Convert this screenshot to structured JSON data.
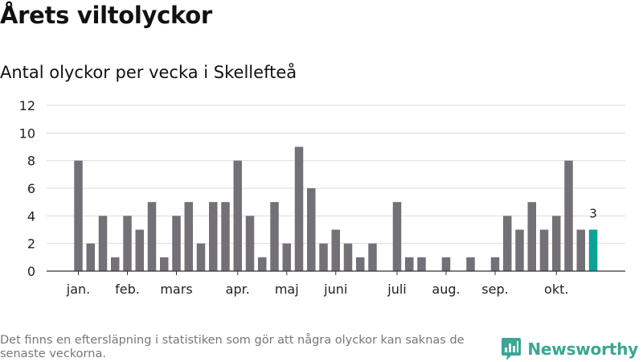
{
  "header": {
    "title": "Årets viltolyckor",
    "subtitle": "Antal olyckor per vecka i Skellefteå"
  },
  "footer": {
    "note": "Det finns en eftersläpning i statistiken som gör att några olyckor kan saknas de senaste veckorna.",
    "brand": "Newsworthy",
    "brand_icon": "newsworthy-logo-icon"
  },
  "colors": {
    "bar": "#737177",
    "highlight": "#0aa197",
    "grid": "#dddddd",
    "axis": "#333333",
    "brand": "#3aa693"
  },
  "chart_data": {
    "type": "bar",
    "title": "Antal olyckor per vecka i Skellefteå",
    "ylim": [
      0,
      12
    ],
    "y_ticks": [
      0,
      2,
      4,
      6,
      8,
      10,
      12
    ],
    "grid": "horizontal",
    "x_tick_labels": [
      {
        "label": "jan.",
        "week": 1
      },
      {
        "label": "feb.",
        "week": 5
      },
      {
        "label": "mars",
        "week": 9
      },
      {
        "label": "apr.",
        "week": 14
      },
      {
        "label": "maj",
        "week": 18
      },
      {
        "label": "juni",
        "week": 22
      },
      {
        "label": "juli",
        "week": 27
      },
      {
        "label": "aug.",
        "week": 31
      },
      {
        "label": "sep.",
        "week": 35
      },
      {
        "label": "okt.",
        "week": 40
      }
    ],
    "weeks": [
      1,
      2,
      3,
      4,
      5,
      6,
      7,
      8,
      9,
      10,
      11,
      12,
      13,
      14,
      15,
      16,
      17,
      18,
      19,
      20,
      21,
      22,
      23,
      24,
      25,
      26,
      27,
      28,
      29,
      30,
      31,
      32,
      33,
      34,
      35,
      36,
      37,
      38,
      39,
      40,
      41,
      42,
      43
    ],
    "values": [
      8,
      2,
      4,
      1,
      4,
      3,
      5,
      1,
      4,
      5,
      2,
      5,
      5,
      8,
      4,
      1,
      5,
      2,
      9,
      6,
      2,
      3,
      2,
      1,
      2,
      0,
      5,
      1,
      1,
      0,
      1,
      0,
      1,
      0,
      1,
      4,
      3,
      5,
      3,
      4,
      8,
      3,
      3
    ],
    "highlight": {
      "week": 43,
      "value": 3,
      "label": "3"
    }
  }
}
